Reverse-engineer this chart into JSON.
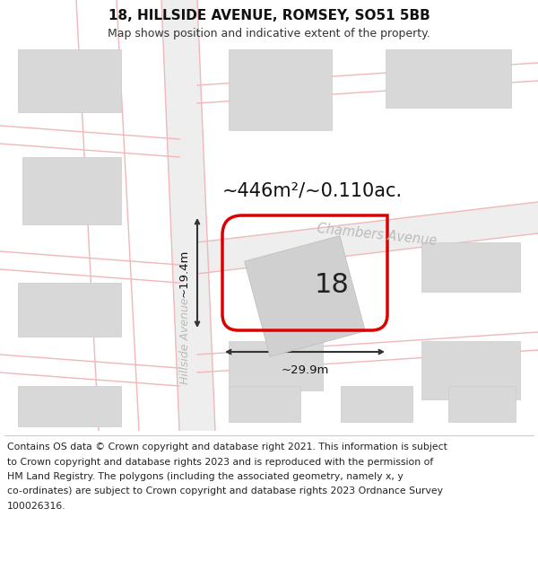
{
  "title_line1": "18, HILLSIDE AVENUE, ROMSEY, SO51 5BB",
  "title_line2": "Map shows position and indicative extent of the property.",
  "area_text": "~446m²/~0.110ac.",
  "street_name": "Chambers Avenue",
  "road_name_rotated": "Hillside Avenue",
  "number_label": "18",
  "width_label": "~29.9m",
  "height_label": "~19.4m",
  "footer_lines": [
    "Contains OS data © Crown copyright and database right 2021. This information is subject",
    "to Crown copyright and database rights 2023 and is reproduced with the permission of",
    "HM Land Registry. The polygons (including the associated geometry, namely x, y",
    "co-ordinates) are subject to Crown copyright and database rights 2023 Ordnance Survey",
    "100026316."
  ],
  "bg_color": "#ffffff",
  "map_bg": "#ffffff",
  "road_fill": "#eeeeee",
  "plot_outline_color": "#dd0000",
  "building_fill": "#d8d8d8",
  "road_line_color": "#f0b8b8",
  "dim_line_color": "#333333",
  "street_label_color": "#bbbbbb",
  "footer_divider_color": "#cccccc",
  "title_color": "#111111",
  "subtitle_color": "#333333"
}
